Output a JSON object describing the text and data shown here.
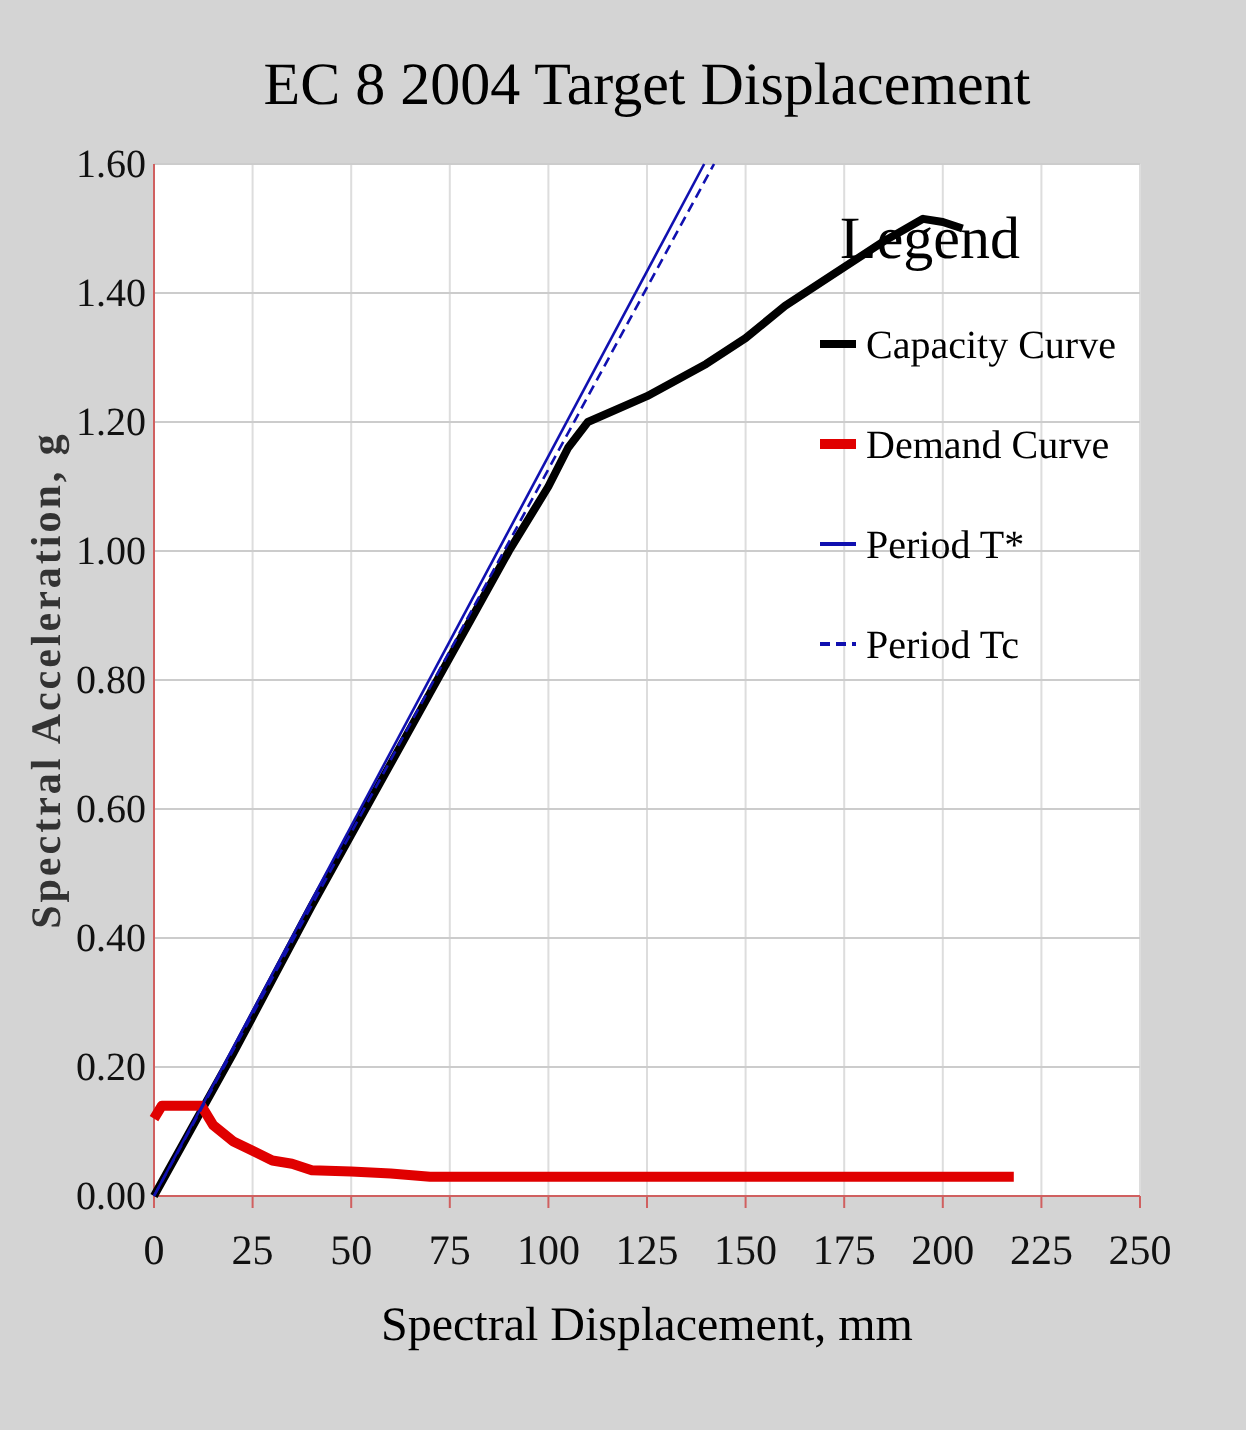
{
  "chart_data": {
    "type": "line",
    "title": "EC 8 2004 Target Displacement",
    "xlabel": "Spectral Displacement, mm",
    "ylabel": "Spectral Acceleration, g",
    "legend_title": "Legend",
    "legend": "top right",
    "grid": true,
    "xlim": [
      0,
      250
    ],
    "xticks": [
      0,
      25,
      50,
      75,
      100,
      125,
      150,
      175,
      200,
      225,
      250
    ],
    "ylim": [
      0,
      1.6
    ],
    "yticks": [
      {
        "value": 0,
        "label": "0.00"
      },
      {
        "value": 0.2,
        "label": "0.20"
      },
      {
        "value": 0.4,
        "label": "0.40"
      },
      {
        "value": 0.6,
        "label": "0.60"
      },
      {
        "value": 0.8,
        "label": "0.80"
      },
      {
        "value": 1.0,
        "label": "1.00"
      },
      {
        "value": 1.2,
        "label": "1.20"
      },
      {
        "value": 1.4,
        "label": "1.40"
      },
      {
        "value": 1.6,
        "label": "1.60"
      }
    ],
    "series": [
      {
        "name": "Capacity Curve",
        "color": "#000000",
        "line_style": "solid",
        "x": [
          0,
          10,
          20,
          30,
          40,
          50,
          60,
          70,
          80,
          90,
          100,
          105,
          110,
          125,
          140,
          150,
          160,
          175,
          185,
          195,
          200,
          205
        ],
        "values": [
          0,
          0.11,
          0.22,
          0.335,
          0.45,
          0.56,
          0.67,
          0.78,
          0.89,
          1.0,
          1.1,
          1.16,
          1.2,
          1.24,
          1.29,
          1.33,
          1.38,
          1.44,
          1.48,
          1.515,
          1.51,
          1.5
        ]
      },
      {
        "name": "Demand Curve",
        "color": "#e00000",
        "line_style": "solid",
        "x": [
          0,
          2,
          12,
          15,
          20,
          25,
          30,
          35,
          40,
          50,
          60,
          70,
          100,
          218
        ],
        "values": [
          0.12,
          0.14,
          0.14,
          0.11,
          0.085,
          0.07,
          0.055,
          0.05,
          0.04,
          0.038,
          0.035,
          0.03,
          0.03,
          0.03
        ]
      },
      {
        "name": "Period T*",
        "color": "#1010b0",
        "line_style": "solid",
        "x": [
          0,
          139.5
        ],
        "values": [
          0,
          1.6
        ]
      },
      {
        "name": "Period Tc",
        "color": "#1010b0",
        "line_style": "dashed",
        "x": [
          0,
          142
        ],
        "values": [
          0,
          1.6
        ]
      }
    ]
  }
}
